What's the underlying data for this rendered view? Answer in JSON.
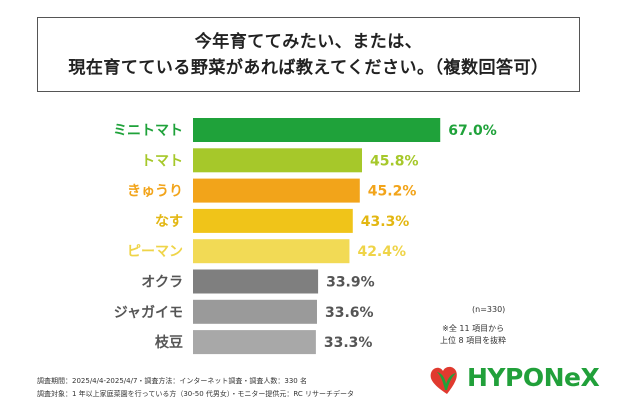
{
  "title": {
    "line1": "今年育ててみたい、または、",
    "line2": "現在育てている野菜があれば教えてください。（複数回答可）"
  },
  "chart_data": {
    "type": "bar",
    "orientation": "horizontal",
    "categories": [
      "ミニトマト",
      "トマト",
      "きゅうり",
      "なす",
      "ピーマン",
      "オクラ",
      "ジャガイモ",
      "枝豆"
    ],
    "values": [
      67.0,
      45.8,
      45.2,
      43.3,
      42.4,
      33.9,
      33.6,
      33.3
    ],
    "value_labels": [
      "67.0%",
      "45.8%",
      "45.2%",
      "43.3%",
      "42.4%",
      "33.9%",
      "33.6%",
      "33.3%"
    ],
    "unit": "%",
    "xlim": [
      0,
      100
    ],
    "colors": [
      "#1fa23a",
      "#a6c82a",
      "#f2a41a",
      "#f0c419",
      "#f2da55",
      "#7f7f7f",
      "#9a9a9a",
      "#a8a8a8"
    ],
    "label_colors": [
      "#1fa23a",
      "#a6c82a",
      "#f2a41a",
      "#e3b712",
      "#efd448",
      "#555555",
      "#555555",
      "#555555"
    ],
    "value_colors": [
      "#1fa23a",
      "#a6c82a",
      "#f2a41a",
      "#e3b712",
      "#efd448",
      "#555555",
      "#555555",
      "#555555"
    ]
  },
  "notes": {
    "sample": "(n=330)",
    "selection_line1": "※全 11 項目から",
    "selection_line2": "上位 8 項目を抜粋"
  },
  "footer": {
    "line1": "調査期間：2025/4/4-2025/4/7・調査方法：インターネット調査・調査人数：330 名",
    "line2": "調査対象：1 年以上家庭菜園を行っている方（30-50 代男女）・モニター提供元：RC リサーチデータ"
  },
  "logo": {
    "text": "HYPONeX"
  }
}
